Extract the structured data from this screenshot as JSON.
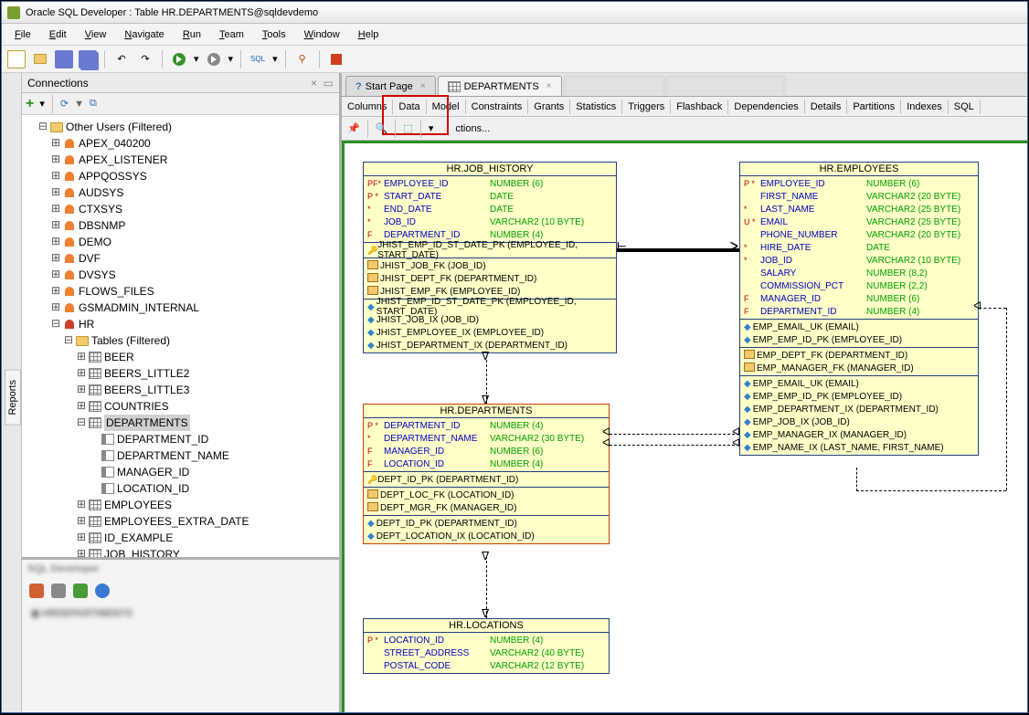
{
  "window": {
    "title": "Oracle SQL Developer : Table HR.DEPARTMENTS@sqldevdemo"
  },
  "menu": [
    "File",
    "Edit",
    "View",
    "Navigate",
    "Run",
    "Team",
    "Tools",
    "Window",
    "Help"
  ],
  "connections_panel": {
    "title": "Connections"
  },
  "tree": {
    "root": "Other Users (Filtered)",
    "users": [
      "APEX_040200",
      "APEX_LISTENER",
      "APPQOSSYS",
      "AUDSYS",
      "CTXSYS",
      "DBSNMP",
      "DEMO",
      "DVF",
      "DVSYS",
      "FLOWS_FILES",
      "GSMADMIN_INTERNAL"
    ],
    "hr": "HR",
    "tables_label": "Tables (Filtered)",
    "tables": [
      "BEER",
      "BEERS_LITTLE2",
      "BEERS_LITTLE3",
      "COUNTRIES"
    ],
    "sel_table": "DEPARTMENTS",
    "sel_cols": [
      "DEPARTMENT_ID",
      "DEPARTMENT_NAME",
      "MANAGER_ID",
      "LOCATION_ID"
    ],
    "after": [
      "EMPLOYEES",
      "EMPLOYEES_EXTRA_DATE",
      "ID_EXAMPLE",
      "JOB_HISTORY"
    ]
  },
  "doc_tabs": {
    "start": "Start Page",
    "dept": "DEPARTMENTS"
  },
  "sub_tabs": [
    "Columns",
    "Data",
    "Model",
    "Constraints",
    "Grants",
    "Statistics",
    "Triggers",
    "Flashback",
    "Dependencies",
    "Details",
    "Partitions",
    "Indexes",
    "SQL"
  ],
  "model_bar": {
    "actions": "ctions..."
  },
  "ent_job_history": {
    "title": "HR.JOB_HISTORY",
    "cols": [
      {
        "k": "PF*",
        "n": "EMPLOYEE_ID",
        "t": "NUMBER (6)"
      },
      {
        "k": "P *",
        "n": "START_DATE",
        "t": "DATE"
      },
      {
        "k": "  *",
        "n": "END_DATE",
        "t": "DATE"
      },
      {
        "k": "  *",
        "n": "JOB_ID",
        "t": "VARCHAR2 (10 BYTE)"
      },
      {
        "k": "F",
        "n": "DEPARTMENT_ID",
        "t": "NUMBER (4)"
      }
    ],
    "pk": "JHIST_EMP_ID_ST_DATE_PK (EMPLOYEE_ID, START_DATE)",
    "fks": [
      "JHIST_JOB_FK (JOB_ID)",
      "JHIST_DEPT_FK (DEPARTMENT_ID)",
      "JHIST_EMP_FK (EMPLOYEE_ID)"
    ],
    "ixs": [
      "JHIST_EMP_ID_ST_DATE_PK (EMPLOYEE_ID, START_DATE)",
      "JHIST_JOB_IX (JOB_ID)",
      "JHIST_EMPLOYEE_IX (EMPLOYEE_ID)",
      "JHIST_DEPARTMENT_IX (DEPARTMENT_ID)"
    ]
  },
  "ent_departments": {
    "title": "HR.DEPARTMENTS",
    "cols": [
      {
        "k": "P *",
        "n": "DEPARTMENT_ID",
        "t": "NUMBER (4)"
      },
      {
        "k": "  *",
        "n": "DEPARTMENT_NAME",
        "t": "VARCHAR2 (30 BYTE)"
      },
      {
        "k": "F",
        "n": "MANAGER_ID",
        "t": "NUMBER (6)"
      },
      {
        "k": "F",
        "n": "LOCATION_ID",
        "t": "NUMBER (4)"
      }
    ],
    "pk": "DEPT_ID_PK (DEPARTMENT_ID)",
    "fks": [
      "DEPT_LOC_FK (LOCATION_ID)",
      "DEPT_MGR_FK (MANAGER_ID)"
    ],
    "ixs": [
      "DEPT_ID_PK (DEPARTMENT_ID)",
      "DEPT_LOCATION_IX (LOCATION_ID)"
    ]
  },
  "ent_locations": {
    "title": "HR.LOCATIONS",
    "cols": [
      {
        "k": "P *",
        "n": "LOCATION_ID",
        "t": "NUMBER (4)"
      },
      {
        "k": "",
        "n": "STREET_ADDRESS",
        "t": "VARCHAR2 (40 BYTE)"
      },
      {
        "k": "",
        "n": "POSTAL_CODE",
        "t": "VARCHAR2 (12 BYTE)"
      }
    ]
  },
  "ent_employees": {
    "title": "HR.EMPLOYEES",
    "cols": [
      {
        "k": "P *",
        "n": "EMPLOYEE_ID",
        "t": "NUMBER (6)"
      },
      {
        "k": "",
        "n": "FIRST_NAME",
        "t": "VARCHAR2 (20 BYTE)"
      },
      {
        "k": "  *",
        "n": "LAST_NAME",
        "t": "VARCHAR2 (25 BYTE)"
      },
      {
        "k": "U *",
        "n": "EMAIL",
        "t": "VARCHAR2 (25 BYTE)"
      },
      {
        "k": "",
        "n": "PHONE_NUMBER",
        "t": "VARCHAR2 (20 BYTE)"
      },
      {
        "k": "  *",
        "n": "HIRE_DATE",
        "t": "DATE"
      },
      {
        "k": "  *",
        "n": "JOB_ID",
        "t": "VARCHAR2 (10 BYTE)"
      },
      {
        "k": "",
        "n": "SALARY",
        "t": "NUMBER (8,2)"
      },
      {
        "k": "",
        "n": "COMMISSION_PCT",
        "t": "NUMBER (2,2)"
      },
      {
        "k": "F",
        "n": "MANAGER_ID",
        "t": "NUMBER (6)"
      },
      {
        "k": "F",
        "n": "DEPARTMENT_ID",
        "t": "NUMBER (4)"
      }
    ],
    "uks": [
      "EMP_EMAIL_UK (EMAIL)",
      "EMP_EMP_ID_PK (EMPLOYEE_ID)"
    ],
    "fks": [
      "EMP_DEPT_FK (DEPARTMENT_ID)",
      "EMP_MANAGER_FK (MANAGER_ID)"
    ],
    "ixs": [
      "EMP_EMAIL_UK (EMAIL)",
      "EMP_EMP_ID_PK (EMPLOYEE_ID)",
      "EMP_DEPARTMENT_IX (DEPARTMENT_ID)",
      "EMP_JOB_IX (JOB_ID)",
      "EMP_MANAGER_IX (MANAGER_ID)",
      "EMP_NAME_IX (LAST_NAME, FIRST_NAME)"
    ]
  },
  "side_tab": "Reports"
}
